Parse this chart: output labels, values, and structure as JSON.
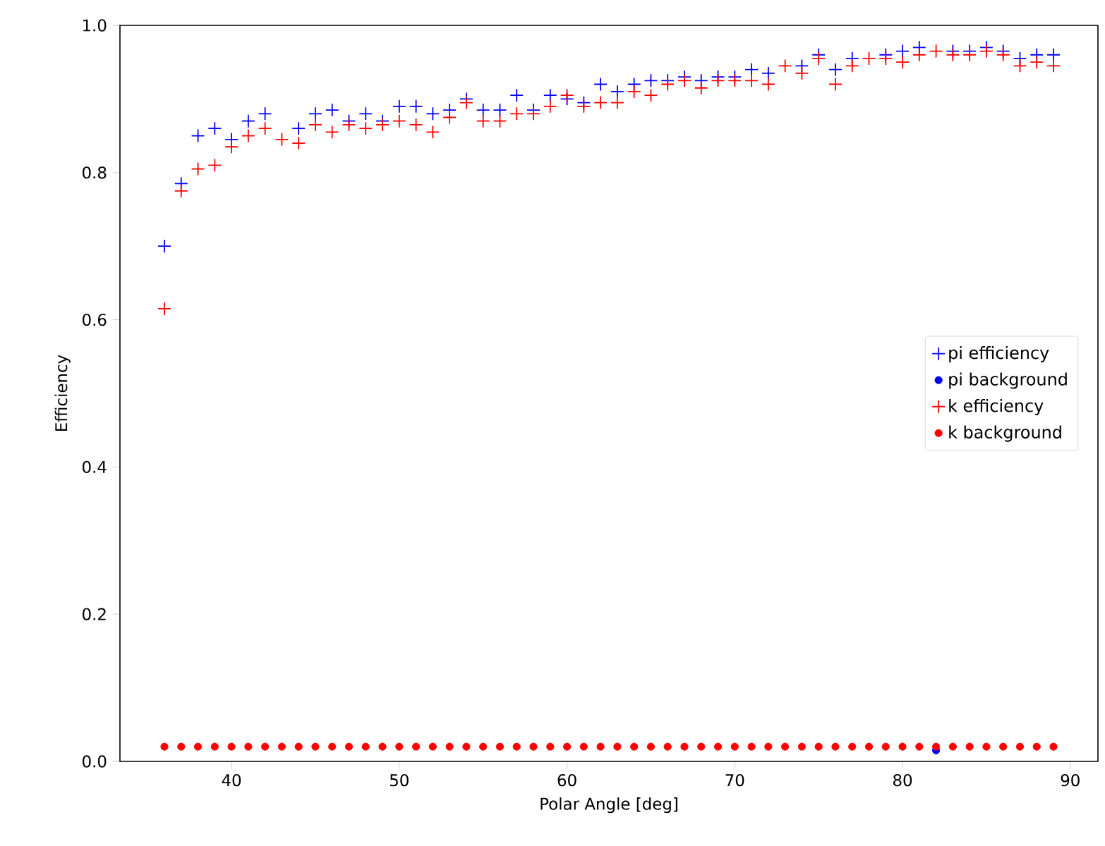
{
  "chart_data": {
    "type": "scatter",
    "xlabel": "Polar Angle [deg]",
    "ylabel": "Efficiency",
    "x": [
      36,
      37,
      38,
      39,
      40,
      41,
      42,
      43,
      44,
      45,
      46,
      47,
      48,
      49,
      50,
      51,
      52,
      53,
      54,
      55,
      56,
      57,
      58,
      59,
      60,
      61,
      62,
      63,
      64,
      65,
      66,
      67,
      68,
      69,
      70,
      71,
      72,
      73,
      74,
      75,
      76,
      77,
      78,
      79,
      80,
      81,
      82,
      83,
      84,
      85,
      86,
      87,
      88,
      89
    ],
    "series": [
      {
        "name": "pi efficiency",
        "color": "#0000ff",
        "marker": "cross",
        "values": [
          0.7,
          0.785,
          0.85,
          0.86,
          0.845,
          0.87,
          0.88,
          null,
          0.86,
          0.88,
          0.885,
          0.87,
          0.88,
          0.87,
          0.89,
          0.89,
          0.88,
          0.885,
          0.9,
          0.885,
          0.885,
          0.905,
          0.885,
          0.905,
          0.9,
          0.895,
          0.92,
          0.91,
          0.92,
          0.925,
          0.925,
          0.93,
          0.925,
          0.93,
          0.93,
          0.94,
          0.935,
          null,
          0.945,
          0.96,
          0.94,
          0.955,
          null,
          0.96,
          0.965,
          0.97,
          null,
          0.965,
          0.965,
          0.97,
          0.965,
          0.955,
          0.96,
          0.96
        ]
      },
      {
        "name": "pi background",
        "color": "#0000ff",
        "marker": "circle",
        "values": [
          null,
          null,
          null,
          null,
          null,
          null,
          null,
          null,
          null,
          null,
          null,
          null,
          null,
          null,
          null,
          null,
          null,
          null,
          null,
          null,
          null,
          null,
          null,
          null,
          null,
          null,
          null,
          null,
          null,
          null,
          null,
          null,
          null,
          null,
          null,
          null,
          null,
          null,
          null,
          null,
          null,
          null,
          null,
          null,
          null,
          null,
          0.015,
          null,
          null,
          null,
          null,
          null,
          null,
          null
        ]
      },
      {
        "name": "k efficiency",
        "color": "#ff0000",
        "marker": "cross",
        "values": [
          0.615,
          0.775,
          0.805,
          0.81,
          0.835,
          0.85,
          0.86,
          0.845,
          0.84,
          0.865,
          0.855,
          0.865,
          0.86,
          0.865,
          0.87,
          0.865,
          0.855,
          0.875,
          0.895,
          0.87,
          0.87,
          0.88,
          0.88,
          0.89,
          0.905,
          0.89,
          0.895,
          0.895,
          0.91,
          0.905,
          0.92,
          0.925,
          0.915,
          0.925,
          0.925,
          0.925,
          0.92,
          0.945,
          0.935,
          0.955,
          0.92,
          0.945,
          0.955,
          0.955,
          0.95,
          0.96,
          0.965,
          0.96,
          0.96,
          0.965,
          0.96,
          0.945,
          0.95,
          0.945
        ]
      },
      {
        "name": "k background",
        "color": "#ff0000",
        "marker": "circle",
        "values": [
          0.02,
          0.02,
          0.02,
          0.02,
          0.02,
          0.02,
          0.02,
          0.02,
          0.02,
          0.02,
          0.02,
          0.02,
          0.02,
          0.02,
          0.02,
          0.02,
          0.02,
          0.02,
          0.02,
          0.02,
          0.02,
          0.02,
          0.02,
          0.02,
          0.02,
          0.02,
          0.02,
          0.02,
          0.02,
          0.02,
          0.02,
          0.02,
          0.02,
          0.02,
          0.02,
          0.02,
          0.02,
          0.02,
          0.02,
          0.02,
          0.02,
          0.02,
          0.02,
          0.02,
          0.02,
          0.02,
          0.02,
          0.02,
          0.02,
          0.02,
          0.02,
          0.02,
          0.02,
          0.02
        ]
      }
    ],
    "xlim": [
      33.35,
      91.65
    ],
    "ylim": [
      0,
      1
    ],
    "xticks": [
      40,
      50,
      60,
      70,
      80,
      90
    ],
    "yticks": [
      {
        "value": 0,
        "label": "0.0"
      },
      {
        "value": 0.2,
        "label": "0.2"
      },
      {
        "value": 0.4,
        "label": "0.4"
      },
      {
        "value": 0.6,
        "label": "0.6"
      },
      {
        "value": 0.8,
        "label": "0.8"
      },
      {
        "value": 1,
        "label": "1.0"
      }
    ],
    "legend": "right",
    "grid": false
  }
}
